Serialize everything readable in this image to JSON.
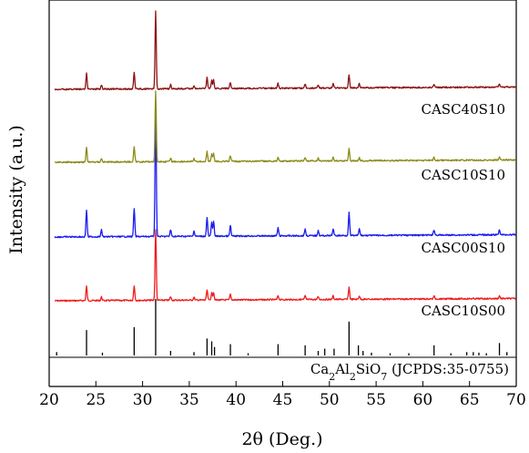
{
  "chart_data": {
    "type": "line",
    "xlabel": "2θ (Deg.)",
    "ylabel": "Intensity (a.u.)",
    "xlim": [
      20,
      70
    ],
    "xticks": [
      "20",
      "25",
      "30",
      "35",
      "40",
      "45",
      "50",
      "55",
      "60",
      "65",
      "70"
    ],
    "grid": false,
    "reference": {
      "label_parts": [
        {
          "text": "Ca",
          "sub": false
        },
        {
          "text": "2",
          "sub": true
        },
        {
          "text": "Al",
          "sub": false
        },
        {
          "text": "2",
          "sub": true
        },
        {
          "text": "SiO",
          "sub": false
        },
        {
          "text": "7",
          "sub": true
        },
        {
          "text": " (JCPDS:35-0755)",
          "sub": false
        }
      ],
      "color": "#000000",
      "peaks": [
        {
          "x": 20.8,
          "y": 0.06
        },
        {
          "x": 24.0,
          "y": 0.45
        },
        {
          "x": 25.7,
          "y": 0.05
        },
        {
          "x": 29.1,
          "y": 0.5
        },
        {
          "x": 31.4,
          "y": 1.0
        },
        {
          "x": 33.0,
          "y": 0.08
        },
        {
          "x": 35.5,
          "y": 0.06
        },
        {
          "x": 36.9,
          "y": 0.3
        },
        {
          "x": 37.4,
          "y": 0.25
        },
        {
          "x": 37.7,
          "y": 0.15
        },
        {
          "x": 39.4,
          "y": 0.2
        },
        {
          "x": 41.3,
          "y": 0.04
        },
        {
          "x": 44.5,
          "y": 0.2
        },
        {
          "x": 47.4,
          "y": 0.18
        },
        {
          "x": 48.8,
          "y": 0.08
        },
        {
          "x": 49.5,
          "y": 0.12
        },
        {
          "x": 50.5,
          "y": 0.12
        },
        {
          "x": 52.1,
          "y": 0.6
        },
        {
          "x": 53.1,
          "y": 0.18
        },
        {
          "x": 53.6,
          "y": 0.08
        },
        {
          "x": 54.5,
          "y": 0.05
        },
        {
          "x": 56.5,
          "y": 0.04
        },
        {
          "x": 58.5,
          "y": 0.04
        },
        {
          "x": 61.2,
          "y": 0.18
        },
        {
          "x": 63.0,
          "y": 0.04
        },
        {
          "x": 64.7,
          "y": 0.06
        },
        {
          "x": 65.4,
          "y": 0.06
        },
        {
          "x": 66.0,
          "y": 0.05
        },
        {
          "x": 66.8,
          "y": 0.04
        },
        {
          "x": 68.2,
          "y": 0.22
        },
        {
          "x": 69.0,
          "y": 0.06
        }
      ]
    },
    "series": [
      {
        "name": "CASC10S00",
        "color": "#ee1c1c"
      },
      {
        "name": "CASC00S10",
        "color": "#1a1aee"
      },
      {
        "name": "CASC10S10",
        "color": "#8b8b1a"
      },
      {
        "name": "CASC40S10",
        "color": "#8b1212"
      }
    ],
    "experimental_peaks": [
      {
        "x": 24.0,
        "y": 0.2
      },
      {
        "x": 25.6,
        "y": 0.05
      },
      {
        "x": 29.1,
        "y": 0.21
      },
      {
        "x": 31.4,
        "y": 1.0
      },
      {
        "x": 33.0,
        "y": 0.05
      },
      {
        "x": 35.5,
        "y": 0.04
      },
      {
        "x": 36.9,
        "y": 0.14
      },
      {
        "x": 37.4,
        "y": 0.1
      },
      {
        "x": 37.6,
        "y": 0.11
      },
      {
        "x": 39.4,
        "y": 0.08
      },
      {
        "x": 44.5,
        "y": 0.06
      },
      {
        "x": 47.4,
        "y": 0.05
      },
      {
        "x": 48.8,
        "y": 0.04
      },
      {
        "x": 50.4,
        "y": 0.05
      },
      {
        "x": 52.1,
        "y": 0.17
      },
      {
        "x": 53.2,
        "y": 0.05
      },
      {
        "x": 61.2,
        "y": 0.04
      },
      {
        "x": 68.2,
        "y": 0.04
      }
    ]
  }
}
